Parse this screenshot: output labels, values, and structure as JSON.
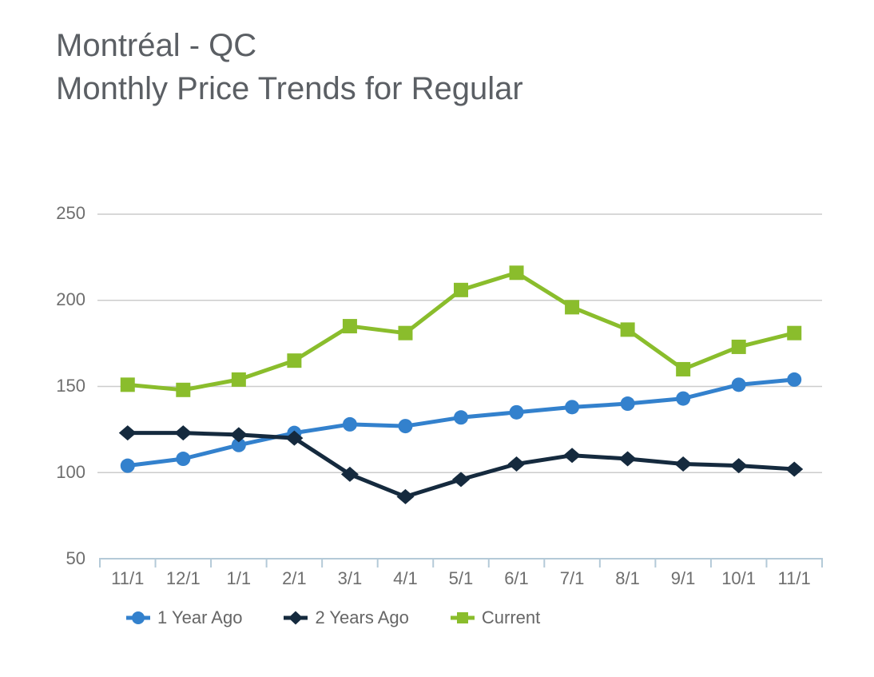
{
  "title": {
    "line1": "Montréal - QC",
    "line2": "Monthly Price Trends for Regular"
  },
  "colors": {
    "background": "#FFFFFF",
    "title_text": "#5B5F64",
    "axis_text": "#6E6E6E",
    "legend_text": "#666666",
    "gridline": "#CCCCCC",
    "axis_line": "#B4CAD8",
    "series_blue": "#3381CD",
    "series_navy": "#152A3E",
    "series_green": "#8ABD2C"
  },
  "chart_data": {
    "type": "line",
    "title": "Montréal - QC Monthly Price Trends for Regular",
    "xlabel": "",
    "ylabel": "",
    "categories": [
      "11/1",
      "12/1",
      "1/1",
      "2/1",
      "3/1",
      "4/1",
      "5/1",
      "6/1",
      "7/1",
      "8/1",
      "9/1",
      "10/1",
      "11/1"
    ],
    "yticks": [
      250,
      200,
      150,
      100,
      50
    ],
    "ylim": [
      50,
      250
    ],
    "grid": true,
    "legend_position": "bottom",
    "series": [
      {
        "name": "1 Year Ago",
        "marker": "circle",
        "color": "#3381CD",
        "values": [
          104,
          108,
          116,
          123,
          128,
          127,
          132,
          135,
          138,
          140,
          143,
          151,
          154
        ]
      },
      {
        "name": "2 Years Ago",
        "marker": "diamond",
        "color": "#152A3E",
        "values": [
          123,
          123,
          122,
          120,
          99,
          86,
          96,
          105,
          110,
          108,
          105,
          104,
          102
        ]
      },
      {
        "name": "Current",
        "marker": "square",
        "color": "#8ABD2C",
        "values": [
          151,
          148,
          154,
          165,
          185,
          181,
          206,
          216,
          196,
          183,
          160,
          173,
          181
        ]
      }
    ]
  }
}
